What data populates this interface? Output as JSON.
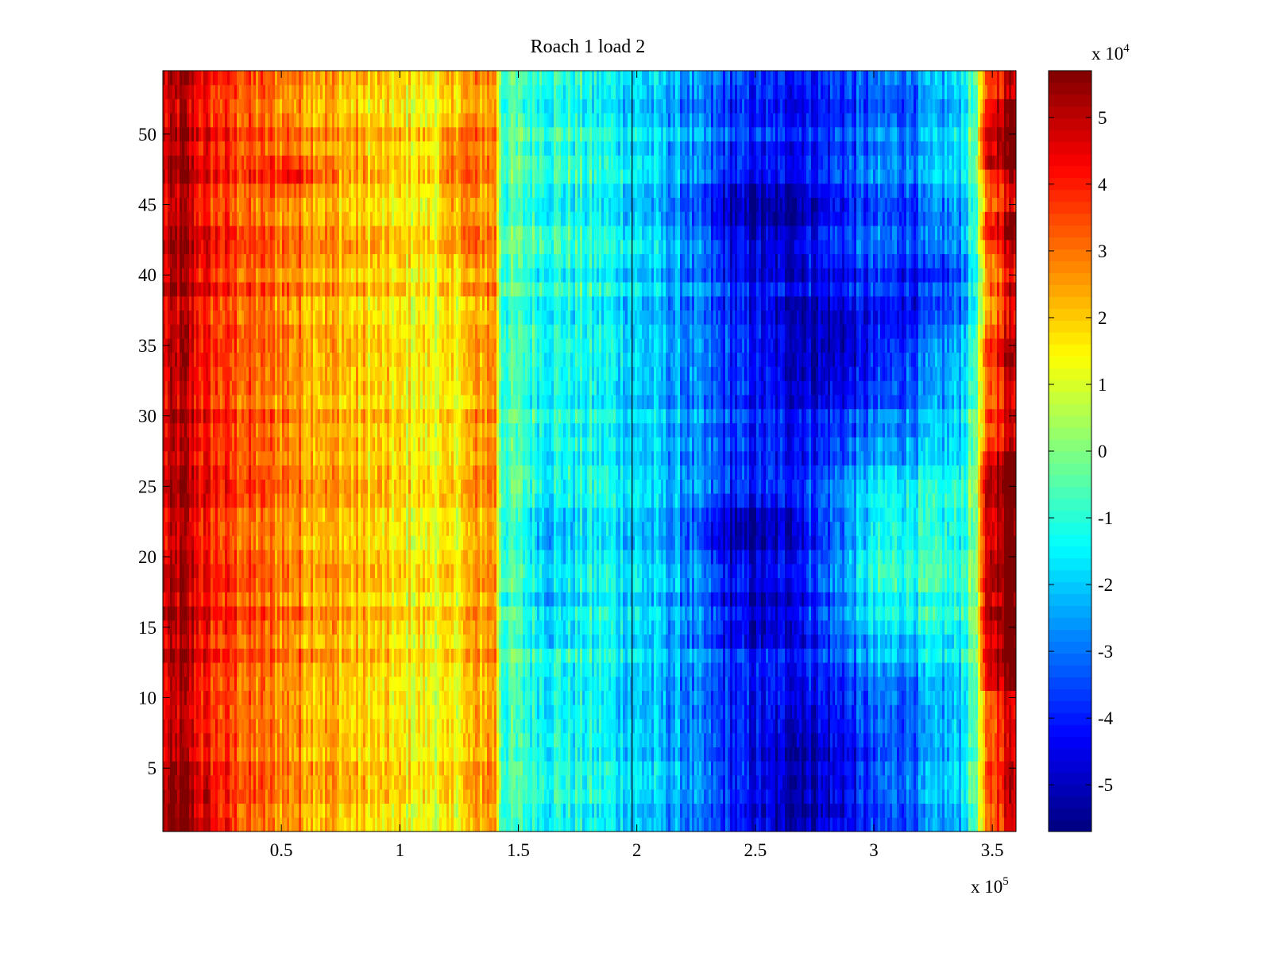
{
  "chart_data": {
    "type": "heatmap",
    "title": "Roach 1 load 2",
    "xlabel": "",
    "ylabel": "",
    "x_multiplier": {
      "base": "x 10",
      "exponent": "5"
    },
    "xlim": [
      0,
      360000
    ],
    "ylim": [
      0.5,
      54.5
    ],
    "x_ticks": [
      {
        "value": 50000,
        "label": "0.5"
      },
      {
        "value": 100000,
        "label": "1"
      },
      {
        "value": 150000,
        "label": "1.5"
      },
      {
        "value": 200000,
        "label": "2"
      },
      {
        "value": 250000,
        "label": "2.5"
      },
      {
        "value": 300000,
        "label": "3"
      },
      {
        "value": 350000,
        "label": "3.5"
      }
    ],
    "y_ticks": [
      {
        "value": 5,
        "label": "5"
      },
      {
        "value": 10,
        "label": "10"
      },
      {
        "value": 15,
        "label": "15"
      },
      {
        "value": 20,
        "label": "20"
      },
      {
        "value": 25,
        "label": "25"
      },
      {
        "value": 30,
        "label": "30"
      },
      {
        "value": 35,
        "label": "35"
      },
      {
        "value": 40,
        "label": "40"
      },
      {
        "value": 45,
        "label": "45"
      },
      {
        "value": 50,
        "label": "50"
      }
    ],
    "vertical_line_x": 198000,
    "colormap": "jet",
    "colorbar": {
      "range": [
        -57000,
        57000
      ],
      "multiplier": {
        "base": "x 10",
        "exponent": "4"
      },
      "ticks": [
        {
          "value": 50000,
          "label": "5"
        },
        {
          "value": 40000,
          "label": "4"
        },
        {
          "value": 30000,
          "label": "3"
        },
        {
          "value": 20000,
          "label": "2"
        },
        {
          "value": 10000,
          "label": "1"
        },
        {
          "value": 0,
          "label": "0"
        },
        {
          "value": -10000,
          "label": "-1"
        },
        {
          "value": -20000,
          "label": "-2"
        },
        {
          "value": -30000,
          "label": "-3"
        },
        {
          "value": -40000,
          "label": "-4"
        },
        {
          "value": -50000,
          "label": "-5"
        }
      ]
    },
    "rows": 54,
    "column_profile": {
      "x": [
        0,
        8000,
        20000,
        40000,
        60000,
        80000,
        100000,
        120000,
        135000,
        140000,
        143000,
        165000,
        190000,
        220000,
        240000,
        260000,
        280000,
        300000,
        320000,
        335000,
        342000,
        348000,
        355000,
        360000
      ],
      "value": [
        45000,
        52000,
        40000,
        32000,
        28000,
        22000,
        17000,
        15000,
        26000,
        30000,
        -5000,
        -10000,
        -14000,
        -25000,
        -36000,
        -40000,
        -38000,
        -32000,
        -28000,
        -20000,
        -5000,
        30000,
        46000,
        48000
      ]
    },
    "blobs": [
      {
        "x": 250000,
        "y": 44,
        "sx": 18000,
        "sy": 3,
        "amp": -14000
      },
      {
        "x": 285000,
        "y": 35,
        "sx": 20000,
        "sy": 3,
        "amp": -12000
      },
      {
        "x": 330000,
        "y": 40,
        "sx": 16000,
        "sy": 3,
        "amp": -14000
      },
      {
        "x": 245000,
        "y": 22,
        "sx": 14000,
        "sy": 2,
        "amp": -14000
      },
      {
        "x": 250000,
        "y": 16,
        "sx": 14000,
        "sy": 2,
        "amp": -12000
      },
      {
        "x": 270000,
        "y": 4,
        "sx": 20000,
        "sy": 3,
        "amp": -12000
      },
      {
        "x": 165000,
        "y": 22,
        "sx": 9000,
        "sy": 3,
        "amp": -8000
      },
      {
        "x": 165000,
        "y": 16,
        "sx": 9000,
        "sy": 2,
        "amp": -8000
      },
      {
        "x": 310000,
        "y": 20,
        "sx": 20000,
        "sy": 5,
        "amp": 22000
      },
      {
        "x": 55000,
        "y": 47,
        "sx": 8000,
        "sy": 1,
        "amp": 12000
      },
      {
        "x": 125000,
        "y": 47,
        "sx": 5000,
        "sy": 4,
        "amp": 12000
      },
      {
        "x": 8000,
        "y": 1,
        "sx": 14000,
        "sy": 2,
        "amp": 10000
      }
    ],
    "edge_rows_hot_right": [
      {
        "y0": 48,
        "y1": 52,
        "amp": 12000
      },
      {
        "y0": 43,
        "y1": 44,
        "amp": 10000
      },
      {
        "y0": 34,
        "y1": 35,
        "amp": 6000
      },
      {
        "y0": 11,
        "y1": 27,
        "amp": 12000
      }
    ]
  }
}
